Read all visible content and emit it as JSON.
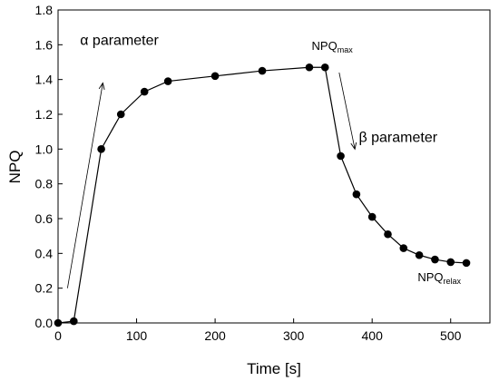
{
  "chart_data": {
    "type": "line",
    "title": "",
    "xlabel": "Time [s]",
    "ylabel": "NPQ",
    "xlim": [
      0,
      550
    ],
    "ylim": [
      0.0,
      1.8
    ],
    "xticks": [
      0,
      100,
      200,
      300,
      400,
      500
    ],
    "yticks": [
      0.0,
      0.2,
      0.4,
      0.6,
      0.8,
      1.0,
      1.2,
      1.4,
      1.6,
      1.8
    ],
    "grid": false,
    "series": [
      {
        "x": [
          0,
          20,
          55,
          80,
          110,
          140,
          200,
          260,
          320,
          340,
          360,
          380,
          400,
          420,
          440,
          460,
          480,
          500,
          520
        ],
        "y": [
          0.0,
          0.01,
          1.0,
          1.2,
          1.33,
          1.39,
          1.42,
          1.45,
          1.47,
          1.47,
          0.96,
          0.74,
          0.61,
          0.51,
          0.43,
          0.39,
          0.365,
          0.35,
          0.345
        ]
      }
    ],
    "annotations": [
      {
        "text": "α parameter",
        "x": 28,
        "y": 1.6
      },
      {
        "text": "β parameter",
        "x": 383,
        "y": 1.04
      },
      {
        "text": "NPQ",
        "sub": "max",
        "x": 323,
        "y": 1.57
      },
      {
        "text": "NPQ",
        "sub": "relax",
        "x": 458,
        "y": 0.24
      }
    ],
    "arrows": [
      {
        "from": [
          12,
          0.2
        ],
        "to": [
          57,
          1.38
        ]
      },
      {
        "from": [
          358,
          1.44
        ],
        "to": [
          378,
          1.0
        ]
      }
    ]
  }
}
